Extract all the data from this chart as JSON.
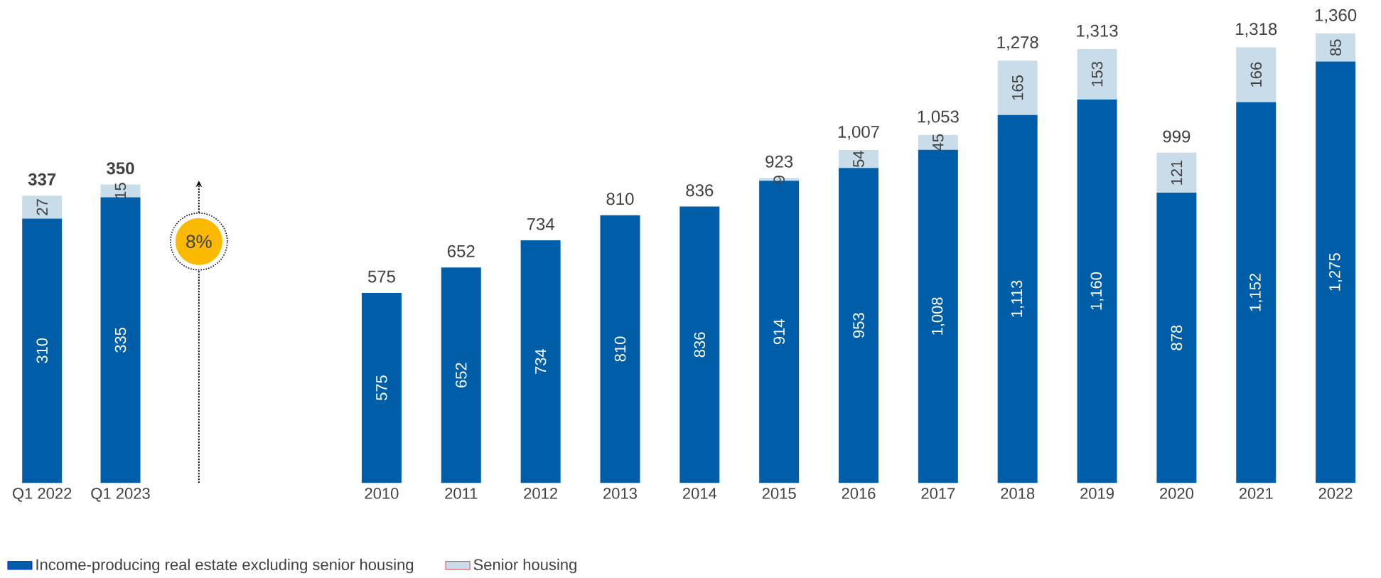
{
  "chart_data": [
    {
      "type": "bar",
      "stacked": true,
      "categories": [
        "Q1 2022",
        "Q1 2023"
      ],
      "tick_labels": "x",
      "series": [
        {
          "color": "#005ea8",
          "values": [
            310,
            335
          ],
          "value_labels": [
            "310",
            "335"
          ]
        },
        {
          "color": "#c9dcea",
          "values": [
            27,
            15
          ],
          "value_labels": [
            "27",
            "15"
          ]
        }
      ],
      "totals": [
        "337",
        "350"
      ],
      "annotations": [
        "8%"
      ]
    },
    {
      "type": "bar",
      "stacked": true,
      "categories": [
        "2010",
        "2011",
        "2012",
        "2013",
        "2014",
        "2015",
        "2016",
        "2017",
        "2018",
        "2019",
        "2020",
        "2021",
        "2022"
      ],
      "tick_labels": "x",
      "legend": "bottom",
      "series": [
        {
          "name": "Income-producing real estate excluding senior housing",
          "color": "#005ea8",
          "values": [
            575,
            652,
            734,
            810,
            836,
            914,
            953,
            1008,
            1113,
            1160,
            878,
            1152,
            1275
          ],
          "value_labels": [
            "575",
            "652",
            "734",
            "810",
            "836",
            "914",
            "953",
            "1,008",
            "1,113",
            "1,160",
            "878",
            "1,152",
            "1,275"
          ]
        },
        {
          "name": "Senior housing",
          "color": "#c9dcea",
          "values": [
            0,
            0,
            0,
            0,
            0,
            9,
            54,
            45,
            165,
            153,
            121,
            166,
            85
          ],
          "value_labels": [
            null,
            null,
            null,
            null,
            null,
            "9",
            "54",
            "45",
            "165",
            "153",
            "121",
            "166",
            "85"
          ]
        }
      ],
      "totals": [
        "575",
        "652",
        "734",
        "810",
        "836",
        "923",
        "1,007",
        "1,053",
        "1,278",
        "1,313",
        "999",
        "1,318",
        "1,360"
      ]
    }
  ]
}
